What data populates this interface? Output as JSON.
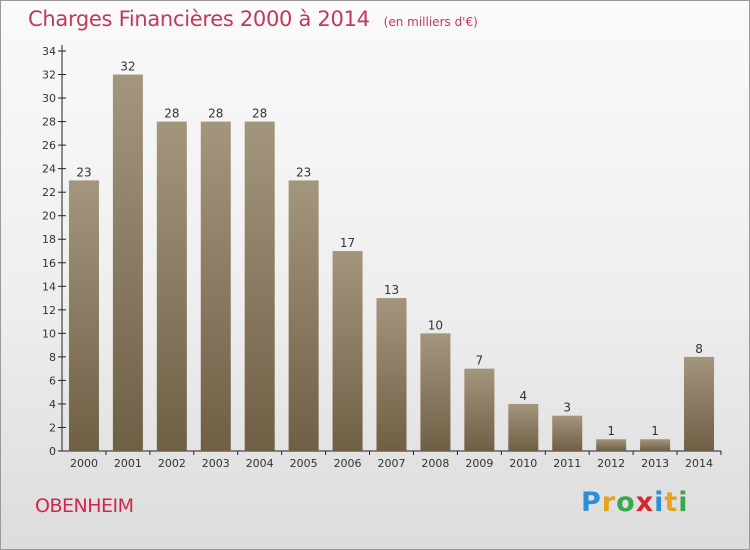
{
  "header": {
    "title": "Charges Financières 2000 à 2014",
    "unit": "(en milliers d'€)"
  },
  "footer": {
    "commune": "OBENHEIM",
    "logo": {
      "letters": [
        {
          "char": "P",
          "color": "#2a8fd6"
        },
        {
          "char": "r",
          "color": "#e8a21c"
        },
        {
          "char": "o",
          "color": "#3aa84a"
        },
        {
          "char": "x",
          "color": "#d9262e"
        },
        {
          "char": "i",
          "color": "#2a8fd6"
        },
        {
          "char": "t",
          "color": "#e8a21c"
        },
        {
          "char": "i",
          "color": "#3aa84a"
        }
      ]
    }
  },
  "colors": {
    "bar_top": "#a4967d",
    "bar_bottom": "#6e5f45",
    "axis": "#222222",
    "title": "#c03a5a"
  },
  "chart_data": {
    "type": "bar",
    "categories": [
      "2000",
      "2001",
      "2002",
      "2003",
      "2004",
      "2005",
      "2006",
      "2007",
      "2008",
      "2009",
      "2010",
      "2011",
      "2012",
      "2013",
      "2014"
    ],
    "values": [
      23,
      32,
      28,
      28,
      28,
      23,
      17,
      13,
      10,
      7,
      4,
      3,
      1,
      1,
      8
    ],
    "ylim": [
      0,
      34
    ],
    "yticks": [
      0,
      2,
      4,
      6,
      8,
      10,
      12,
      14,
      16,
      18,
      20,
      22,
      24,
      26,
      28,
      30,
      32,
      34
    ],
    "grid": false,
    "data_labels": true
  }
}
